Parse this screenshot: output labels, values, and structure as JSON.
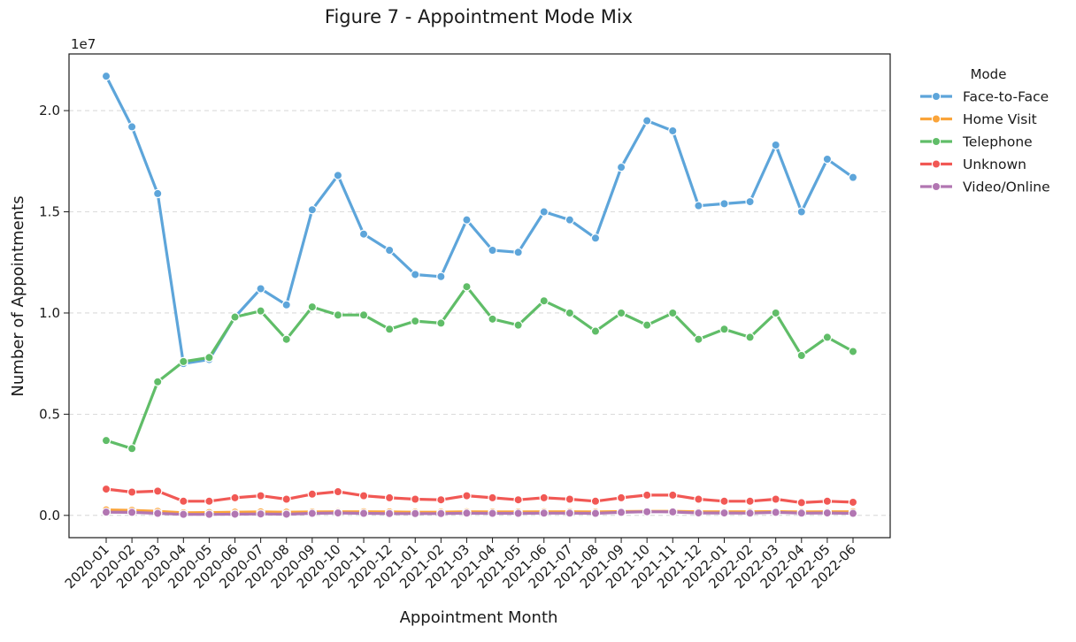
{
  "chart_data": {
    "type": "line",
    "title": "Figure 7 - Appointment Mode Mix",
    "xlabel": "Appointment Month",
    "ylabel": "Number of Appointments",
    "y_scale_label": "1e7",
    "y_scale": 10000000,
    "ylim": [
      -1100000,
      22800000
    ],
    "yticks": [
      0,
      5000000,
      10000000,
      15000000,
      20000000
    ],
    "ytick_labels": [
      "0.0",
      "0.5",
      "1.0",
      "1.5",
      "2.0"
    ],
    "grid": "y-dashed",
    "legend_title": "Mode",
    "legend_position": "outside-right",
    "categories": [
      "2020-01",
      "2020-02",
      "2020-03",
      "2020-04",
      "2020-05",
      "2020-06",
      "2020-07",
      "2020-08",
      "2020-09",
      "2020-10",
      "2020-11",
      "2020-12",
      "2021-01",
      "2021-02",
      "2021-03",
      "2021-04",
      "2021-05",
      "2021-06",
      "2021-07",
      "2021-08",
      "2021-09",
      "2021-10",
      "2021-11",
      "2021-12",
      "2022-01",
      "2022-02",
      "2022-03",
      "2022-04",
      "2022-05",
      "2022-06"
    ],
    "series": [
      {
        "name": "Face-to-Face",
        "color": "#5da5da",
        "values": [
          21700000,
          19200000,
          15900000,
          7500000,
          7700000,
          9800000,
          11200000,
          10400000,
          15100000,
          16800000,
          13900000,
          13100000,
          11900000,
          11800000,
          14600000,
          13100000,
          13000000,
          15000000,
          14600000,
          13700000,
          17200000,
          19500000,
          19000000,
          15300000,
          15400000,
          15500000,
          18300000,
          15000000,
          17600000,
          16700000
        ]
      },
      {
        "name": "Home Visit",
        "color": "#faa43a",
        "values": [
          270000,
          250000,
          200000,
          130000,
          140000,
          160000,
          170000,
          160000,
          170000,
          180000,
          180000,
          170000,
          160000,
          160000,
          180000,
          170000,
          170000,
          180000,
          180000,
          170000,
          190000,
          200000,
          200000,
          180000,
          180000,
          180000,
          190000,
          170000,
          180000,
          180000
        ]
      },
      {
        "name": "Telephone",
        "color": "#60bd68",
        "values": [
          3700000,
          3300000,
          6600000,
          7600000,
          7800000,
          9800000,
          10100000,
          8700000,
          10300000,
          9900000,
          9900000,
          9200000,
          9600000,
          9500000,
          11300000,
          9700000,
          9400000,
          10600000,
          10000000,
          9100000,
          10000000,
          9400000,
          10000000,
          8700000,
          9200000,
          8800000,
          10000000,
          7900000,
          8800000,
          8100000
        ]
      },
      {
        "name": "Unknown",
        "color": "#f15854",
        "values": [
          1300000,
          1150000,
          1200000,
          700000,
          700000,
          870000,
          970000,
          800000,
          1050000,
          1170000,
          970000,
          870000,
          800000,
          770000,
          970000,
          870000,
          770000,
          870000,
          800000,
          700000,
          870000,
          1000000,
          1000000,
          800000,
          700000,
          700000,
          800000,
          630000,
          700000,
          650000
        ]
      },
      {
        "name": "Video/Online",
        "color": "#b276b2",
        "values": [
          160000,
          150000,
          100000,
          50000,
          50000,
          60000,
          70000,
          60000,
          100000,
          120000,
          100000,
          90000,
          90000,
          90000,
          110000,
          100000,
          100000,
          110000,
          110000,
          100000,
          150000,
          180000,
          170000,
          120000,
          120000,
          110000,
          150000,
          110000,
          120000,
          100000
        ]
      }
    ]
  }
}
